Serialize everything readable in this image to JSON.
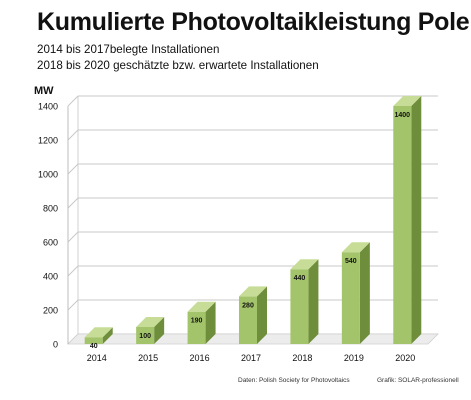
{
  "title": "Kumulierte Photovoltaikleistung Polen",
  "subtitle_lines": [
    "2014 bis 2017belegte Installationen",
    "2018 bis 2020 geschätzte bzw. erwartete Installationen"
  ],
  "chart_data": {
    "type": "bar",
    "categories": [
      "2014",
      "2015",
      "2016",
      "2017",
      "2018",
      "2019",
      "2020"
    ],
    "series": [
      {
        "values": [
          40,
          100,
          190,
          280,
          440,
          540,
          1400
        ]
      }
    ],
    "data_labels": [
      "40",
      "100",
      "190",
      "280",
      "440",
      "540",
      "1400"
    ],
    "y_unit": "MW",
    "ylim": [
      0,
      1400
    ],
    "yticks": [
      0,
      200,
      400,
      600,
      800,
      1000,
      1200,
      1400
    ],
    "grid": true,
    "three_d": true,
    "bar_color": "#a3c46a",
    "bar_side_color": "#6f8e3c",
    "bar_top_color": "#c7dd97"
  },
  "footer": {
    "source": "Daten: Polish Society for Photovoltaics",
    "credit": "Grafik: SOLAR-professionell"
  }
}
